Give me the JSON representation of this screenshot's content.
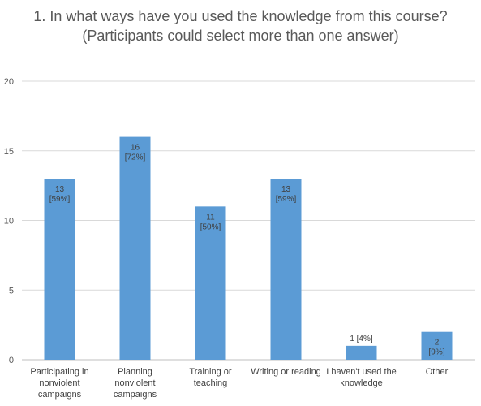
{
  "chart_data": {
    "type": "bar",
    "title": "1. In what ways have you used the knowledge from this course?",
    "subtitle": "(Participants could select more than one answer)",
    "categories": [
      [
        "Participating in",
        "nonviolent",
        "campaigns"
      ],
      [
        "Planning",
        "nonviolent",
        "campaigns"
      ],
      [
        "Training or",
        "teaching"
      ],
      [
        "Writing or reading"
      ],
      [
        "I haven't used the",
        "knowledge"
      ],
      [
        "Other"
      ]
    ],
    "values": [
      13,
      16,
      11,
      13,
      1,
      2
    ],
    "data_labels": [
      [
        "13",
        "[59%]"
      ],
      [
        "16",
        "[72%]"
      ],
      [
        "11",
        "[50%]"
      ],
      [
        "13",
        "[59%]"
      ],
      [
        "1 [4%]"
      ],
      [
        "2",
        "[9%]"
      ]
    ],
    "data_label_position": [
      "inside",
      "inside",
      "inside",
      "inside",
      "above",
      "inside"
    ],
    "ylim": [
      0,
      20
    ],
    "yticks": [
      0,
      5,
      10,
      15,
      20
    ],
    "grid": true,
    "bar_color": "#5b9bd5"
  }
}
